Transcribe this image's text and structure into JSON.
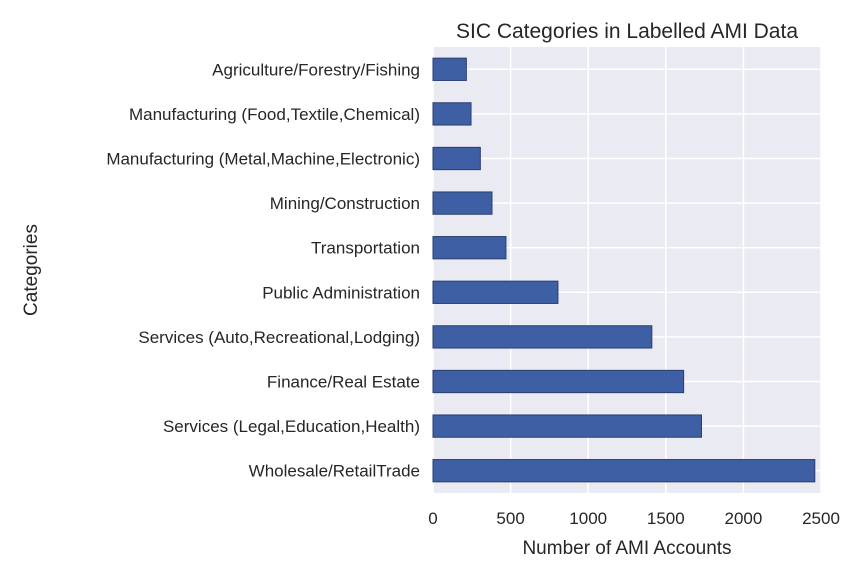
{
  "chart_data": {
    "type": "bar",
    "orientation": "horizontal",
    "title": "SIC Categories in Labelled AMI Data",
    "xlabel": "Number of AMI Accounts",
    "ylabel": "Categories",
    "categories": [
      "Agriculture/Forestry/Fishing",
      "Manufacturing (Food,Textile,Chemical)",
      "Manufacturing (Metal,Machine,Electronic)",
      "Mining/Construction",
      "Transportation",
      "Public Administration",
      "Services (Auto,Recreational,Lodging)",
      "Finance/Real Estate",
      "Services (Legal,Education,Health)",
      "Wholesale/RetailTrade"
    ],
    "values": [
      215,
      245,
      305,
      380,
      470,
      805,
      1410,
      1615,
      1730,
      2460
    ],
    "xlim": [
      0,
      2500
    ],
    "xticks": [
      0,
      500,
      1000,
      1500,
      2000,
      2500
    ],
    "xtick_labels": [
      "0",
      "500",
      "1000",
      "1500",
      "2000",
      "2500"
    ],
    "grid": true,
    "legend": "none",
    "colors": {
      "bar": "#3e5fa3",
      "bar_edge": "#2a3f6e",
      "plot_background": "#eaeaf2",
      "grid": "#ffffff",
      "text": "#262626"
    }
  }
}
